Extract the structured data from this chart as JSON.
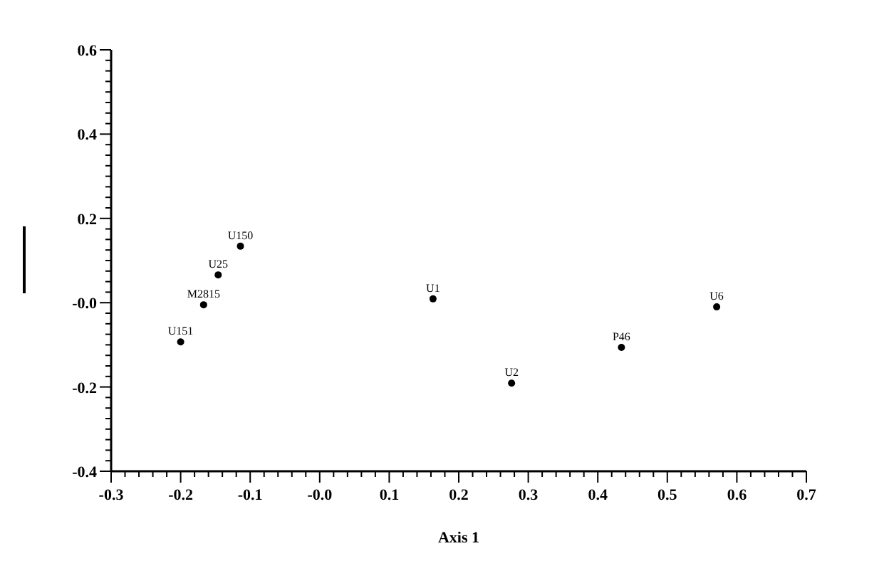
{
  "chart_data": {
    "type": "scatter",
    "xlabel": "Axis 1",
    "grid": false,
    "marker": "circle",
    "xlim": [
      -0.3,
      0.7
    ],
    "ylim": [
      -0.4,
      0.6
    ],
    "xticks": [
      -0.3,
      {
        "value": -0.28,
        "label": null
      },
      {
        "value": -0.26,
        "label": null
      },
      {
        "value": -0.24,
        "label": null
      },
      {
        "value": -0.22,
        "label": null
      },
      -0.2,
      {
        "value": -0.18,
        "label": null
      },
      {
        "value": -0.16,
        "label": null
      },
      {
        "value": -0.14,
        "label": null
      },
      {
        "value": -0.12,
        "label": null
      },
      -0.1,
      {
        "value": -0.08,
        "label": null
      },
      {
        "value": -0.06,
        "label": null
      },
      {
        "value": -0.04,
        "label": null
      },
      {
        "value": -0.02,
        "label": null
      },
      {
        "value": 0,
        "label": "-0.0"
      },
      {
        "value": 0.02,
        "label": null
      },
      {
        "value": 0.04,
        "label": null
      },
      {
        "value": 0.06,
        "label": null
      },
      {
        "value": 0.08,
        "label": null
      },
      0.1,
      {
        "value": 0.12,
        "label": null
      },
      {
        "value": 0.14,
        "label": null
      },
      {
        "value": 0.16,
        "label": null
      },
      {
        "value": 0.18,
        "label": null
      },
      0.2,
      {
        "value": 0.22,
        "label": null
      },
      {
        "value": 0.24,
        "label": null
      },
      {
        "value": 0.26,
        "label": null
      },
      {
        "value": 0.28,
        "label": null
      },
      0.3,
      {
        "value": 0.32,
        "label": null
      },
      {
        "value": 0.34,
        "label": null
      },
      {
        "value": 0.36,
        "label": null
      },
      {
        "value": 0.38,
        "label": null
      },
      0.4,
      {
        "value": 0.42,
        "label": null
      },
      {
        "value": 0.44,
        "label": null
      },
      {
        "value": 0.46,
        "label": null
      },
      {
        "value": 0.48,
        "label": null
      },
      0.5,
      {
        "value": 0.52,
        "label": null
      },
      {
        "value": 0.54,
        "label": null
      },
      {
        "value": 0.56,
        "label": null
      },
      {
        "value": 0.58,
        "label": null
      },
      0.6,
      {
        "value": 0.62,
        "label": null
      },
      {
        "value": 0.64,
        "label": null
      },
      {
        "value": 0.66,
        "label": null
      },
      {
        "value": 0.68,
        "label": null
      },
      0.7
    ],
    "yticks": [
      -0.4,
      {
        "value": -0.375,
        "label": null
      },
      {
        "value": -0.35,
        "label": null
      },
      {
        "value": -0.325,
        "label": null
      },
      {
        "value": -0.3,
        "label": null
      },
      {
        "value": -0.275,
        "label": null
      },
      {
        "value": -0.25,
        "label": null
      },
      {
        "value": -0.225,
        "label": null
      },
      -0.2,
      {
        "value": -0.175,
        "label": null
      },
      {
        "value": -0.15,
        "label": null
      },
      {
        "value": -0.125,
        "label": null
      },
      {
        "value": -0.1,
        "label": null
      },
      {
        "value": -0.075,
        "label": null
      },
      {
        "value": -0.05,
        "label": null
      },
      {
        "value": -0.025,
        "label": null
      },
      {
        "value": 0,
        "label": "-0.0"
      },
      {
        "value": 0.025,
        "label": null
      },
      {
        "value": 0.05,
        "label": null
      },
      {
        "value": 0.075,
        "label": null
      },
      {
        "value": 0.1,
        "label": null
      },
      {
        "value": 0.125,
        "label": null
      },
      {
        "value": 0.15,
        "label": null
      },
      {
        "value": 0.175,
        "label": null
      },
      0.2,
      {
        "value": 0.225,
        "label": null
      },
      {
        "value": 0.25,
        "label": null
      },
      {
        "value": 0.275,
        "label": null
      },
      {
        "value": 0.3,
        "label": null
      },
      {
        "value": 0.325,
        "label": null
      },
      {
        "value": 0.35,
        "label": null
      },
      {
        "value": 0.375,
        "label": null
      },
      0.4,
      {
        "value": 0.425,
        "label": null
      },
      {
        "value": 0.45,
        "label": null
      },
      {
        "value": 0.475,
        "label": null
      },
      {
        "value": 0.5,
        "label": null
      },
      {
        "value": 0.525,
        "label": null
      },
      {
        "value": 0.55,
        "label": null
      },
      {
        "value": 0.575,
        "label": null
      },
      0.6
    ],
    "series": [
      {
        "color": "#000000",
        "x": [
          -0.114,
          -0.146,
          -0.167,
          -0.2,
          0.163,
          0.571,
          0.434,
          0.276
        ],
        "values": [
          0.134,
          0.066,
          -0.005,
          -0.093,
          0.009,
          -0.01,
          -0.106,
          -0.191
        ]
      }
    ],
    "annotations": [
      {
        "text": "U150",
        "x": -0.114,
        "y": 0.134
      },
      {
        "text": "U25",
        "x": -0.146,
        "y": 0.066
      },
      {
        "text": "M2815",
        "x": -0.167,
        "y": -0.005
      },
      {
        "text": "U151",
        "x": -0.2,
        "y": -0.093
      },
      {
        "text": "U1",
        "x": 0.163,
        "y": 0.009
      },
      {
        "text": "U6",
        "x": 0.571,
        "y": -0.01
      },
      {
        "text": "P46",
        "x": 0.434,
        "y": -0.106
      },
      {
        "text": "U2",
        "x": 0.276,
        "y": -0.191
      }
    ]
  }
}
